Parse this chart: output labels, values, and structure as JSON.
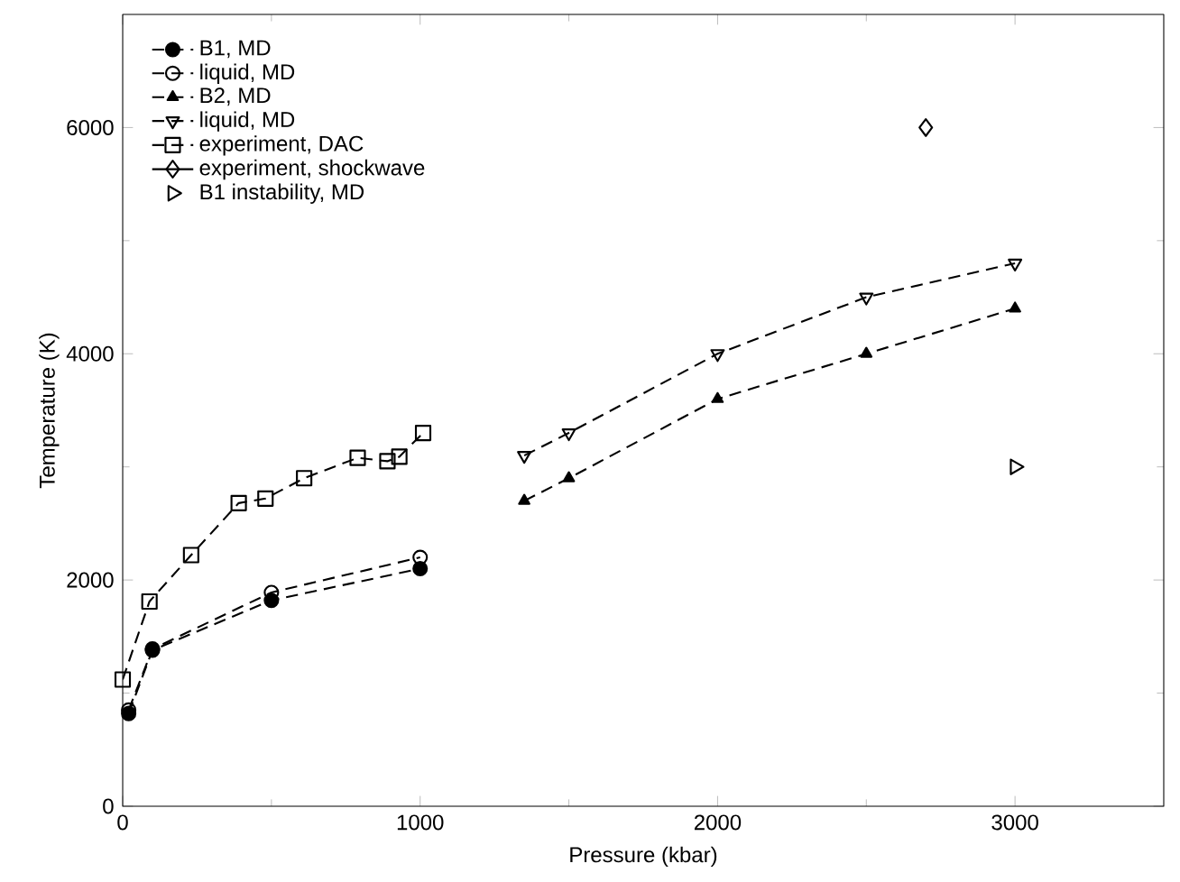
{
  "chart_data": {
    "type": "line",
    "xlabel": "Pressure (kbar)",
    "ylabel": "Temperature (K)",
    "xlim": [
      0,
      3500
    ],
    "ylim": [
      0,
      7000
    ],
    "xticks": [
      0,
      1000,
      2000,
      3000
    ],
    "yticks": [
      0,
      2000,
      4000,
      6000
    ],
    "legend": "top left",
    "grid": false,
    "series": [
      {
        "name": "B1, MD",
        "color": "#000000",
        "marker": "circle",
        "line_style": "dashed",
        "x": [
          20,
          100,
          500,
          1000
        ],
        "values": [
          820,
          1380,
          1820,
          2100
        ]
      },
      {
        "name": "liquid, MD",
        "color": "#000000",
        "marker": "circle-open",
        "line_style": "dashed",
        "x": [
          20,
          100,
          500,
          1000
        ],
        "values": [
          850,
          1390,
          1890,
          2200
        ]
      },
      {
        "name": "B2, MD",
        "color": "#000000",
        "marker": "triangle",
        "line_style": "dashed",
        "x": [
          1350,
          1500,
          2000,
          2500,
          3000
        ],
        "values": [
          2700,
          2900,
          3600,
          4000,
          4400
        ]
      },
      {
        "name": "liquid, MD",
        "color": "#000000",
        "marker": "triangle-down-open",
        "line_style": "dashed",
        "x": [
          1350,
          1500,
          2000,
          2500,
          3000
        ],
        "values": [
          3100,
          3300,
          4000,
          4500,
          4800
        ]
      },
      {
        "name": "experiment, DAC",
        "color": "#000000",
        "marker": "square-open",
        "line_style": "dashed",
        "x": [
          0,
          90,
          230,
          390,
          480,
          610,
          790,
          890,
          930,
          1010
        ],
        "values": [
          1120,
          1810,
          2220,
          2680,
          2720,
          2900,
          3080,
          3050,
          3090,
          3300
        ]
      },
      {
        "name": "experiment, shockwave",
        "color": "#000000",
        "marker": "diamond-open",
        "line_style": "solid",
        "x": [
          2700
        ],
        "values": [
          6000
        ]
      },
      {
        "name": "B1 instability, MD",
        "type": "scatter",
        "color": "#000000",
        "marker": "triangle-right-open",
        "x": [
          3000
        ],
        "values": [
          3000
        ]
      }
    ]
  }
}
